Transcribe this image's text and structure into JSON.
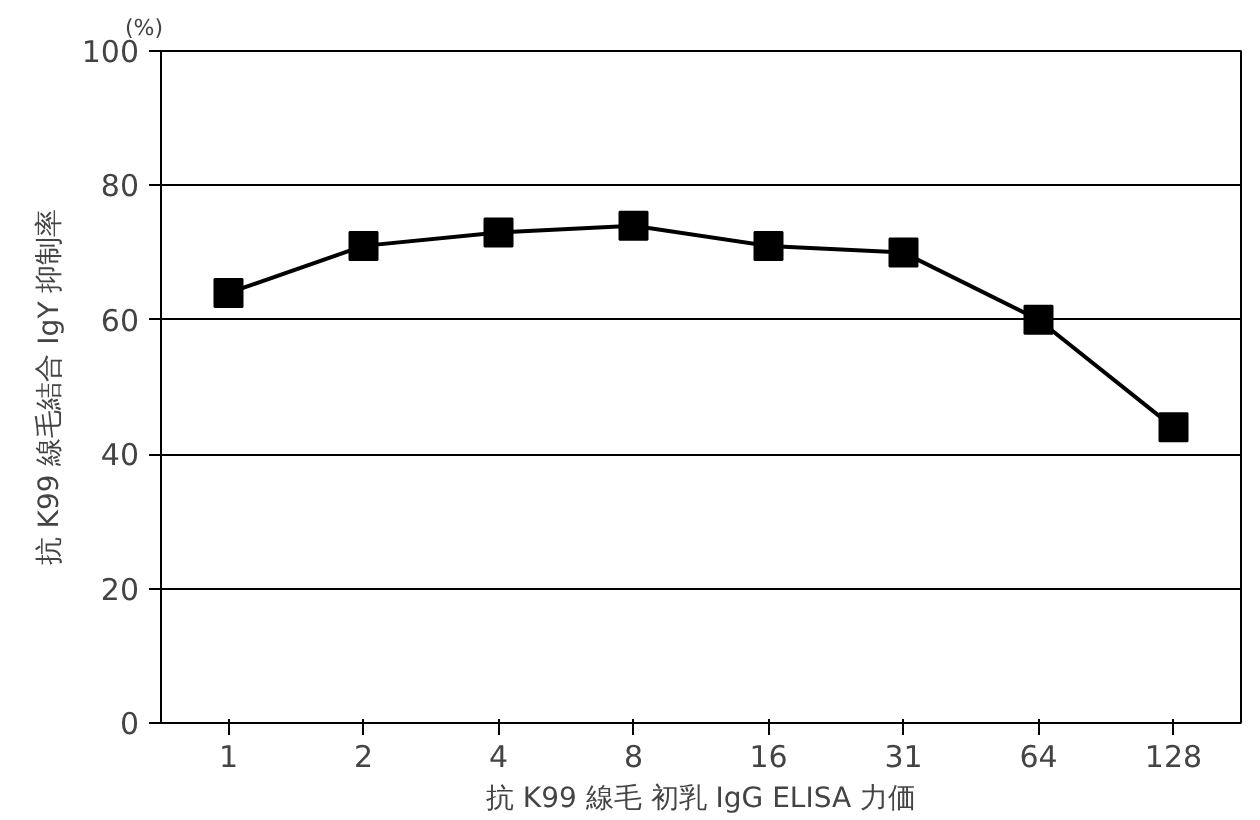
{
  "chart_data": {
    "type": "line",
    "xlabel": "抗 K99 線毛 初乳 IgG ELISA 力価",
    "ylabel": "抗 K99 線毛結合 IgY 抑制率",
    "annotations": [
      "(%)"
    ],
    "categories": [
      "1",
      "2",
      "4",
      "8",
      "16",
      "31",
      "64",
      "128"
    ],
    "series": [
      {
        "color": "#000000",
        "values": [
          64,
          71,
          73,
          74,
          71,
          70,
          60,
          44
        ]
      }
    ],
    "ylim": [
      0,
      100
    ],
    "yticks": [
      0,
      20,
      40,
      60,
      80,
      100
    ],
    "grid": "y",
    "marker": "square",
    "line_style": "solid"
  }
}
